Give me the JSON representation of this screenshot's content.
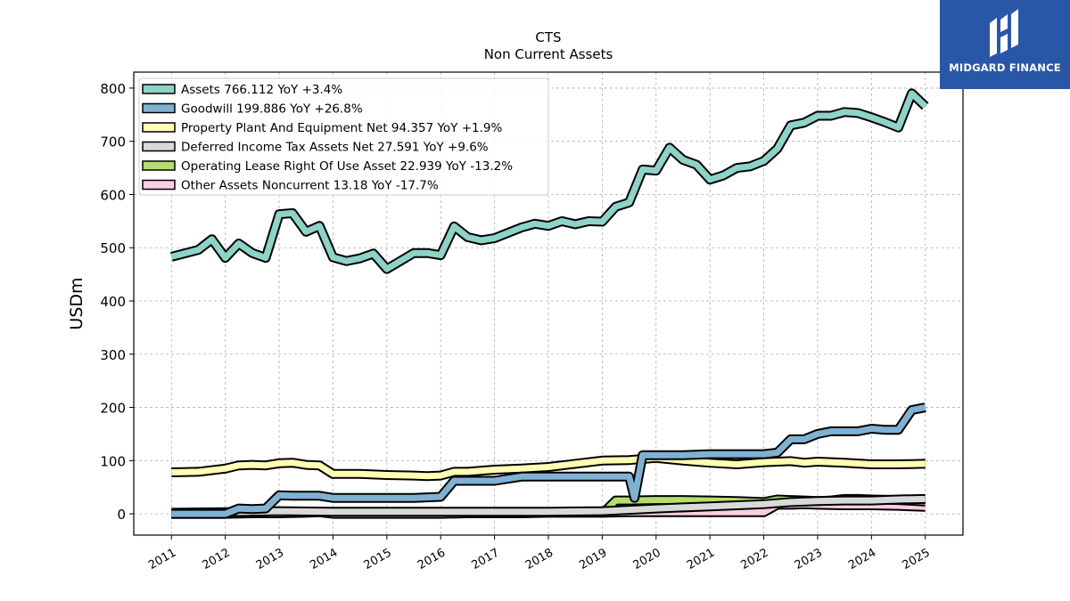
{
  "brand": {
    "name": "MIDGARD FINANCE",
    "color": "#2a56a8"
  },
  "chart_data": {
    "type": "line",
    "title": "CTS",
    "subtitle": "Non Current  Assets",
    "ylabel": "USDm",
    "xlabel": "",
    "ylim": [
      -40,
      830
    ],
    "xlim": [
      2010.3,
      2025.7
    ],
    "yticks": [
      0,
      100,
      200,
      300,
      400,
      500,
      600,
      700,
      800
    ],
    "xticks": [
      "2011",
      "2012",
      "2013",
      "2014",
      "2015",
      "2016",
      "2017",
      "2018",
      "2019",
      "2020",
      "2021",
      "2022",
      "2023",
      "2024",
      "2025"
    ],
    "grid": true,
    "legend_position": "top-left",
    "series": [
      {
        "name": "Assets",
        "legend": "Assets  766.112 YoY +3.4%",
        "color": "#8dd3c7",
        "x": [
          2011.0,
          2011.5,
          2011.75,
          2012.0,
          2012.25,
          2012.5,
          2012.75,
          2013.0,
          2013.25,
          2013.5,
          2013.75,
          2014.0,
          2014.25,
          2014.5,
          2014.75,
          2015.0,
          2015.25,
          2015.5,
          2015.75,
          2016.0,
          2016.25,
          2016.5,
          2016.75,
          2017.0,
          2017.25,
          2017.5,
          2017.75,
          2018.0,
          2018.25,
          2018.5,
          2018.75,
          2019.0,
          2019.25,
          2019.5,
          2019.75,
          2020.0,
          2020.25,
          2020.5,
          2020.75,
          2021.0,
          2021.25,
          2021.5,
          2021.75,
          2022.0,
          2022.25,
          2022.5,
          2022.75,
          2023.0,
          2023.25,
          2023.5,
          2023.75,
          2024.0,
          2024.25,
          2024.5,
          2024.75,
          2025.0
        ],
        "values": [
          483,
          496,
          516,
          481,
          508,
          490,
          481,
          563,
          565,
          530,
          541,
          482,
          475,
          480,
          489,
          460,
          475,
          490,
          490,
          486,
          540,
          520,
          514,
          518,
          528,
          538,
          545,
          541,
          550,
          544,
          550,
          549,
          577,
          585,
          647,
          645,
          688,
          665,
          656,
          628,
          636,
          650,
          653,
          663,
          686,
          730,
          735,
          748,
          748,
          755,
          753,
          745,
          736,
          726,
          790,
          766
        ]
      },
      {
        "name": "Goodwill",
        "legend": "Goodwill  199.886 YoY +26.8%",
        "color": "#80b1d3",
        "x": [
          2011.0,
          2011.75,
          2012.0,
          2012.25,
          2012.5,
          2012.75,
          2013.0,
          2013.25,
          2013.75,
          2014.0,
          2014.5,
          2015.0,
          2015.5,
          2016.0,
          2016.25,
          2016.5,
          2017.0,
          2017.5,
          2018.0,
          2018.5,
          2019.0,
          2019.25,
          2019.5,
          2019.6,
          2019.75,
          2020.0,
          2020.5,
          2021.0,
          2021.5,
          2022.0,
          2022.25,
          2022.5,
          2022.75,
          2023.0,
          2023.25,
          2023.5,
          2023.75,
          2024.0,
          2024.25,
          2024.5,
          2024.75,
          2025.0
        ],
        "values": [
          0,
          0,
          0,
          10,
          9,
          10,
          35,
          34,
          34,
          30,
          30,
          30,
          30,
          32,
          62,
          62,
          62,
          70,
          70,
          70,
          70,
          70,
          70,
          30,
          110,
          110,
          110,
          112,
          112,
          112,
          115,
          140,
          140,
          150,
          155,
          155,
          155,
          160,
          158,
          158,
          195,
          200
        ]
      },
      {
        "name": "Property Plant And Equipment Net",
        "legend": "Property Plant And Equipment Net  94.357 YoY +1.9%",
        "color": "#ffffb3",
        "x": [
          2011.0,
          2011.5,
          2012.0,
          2012.25,
          2012.5,
          2012.75,
          2013.0,
          2013.25,
          2013.5,
          2013.75,
          2014.0,
          2014.5,
          2015.0,
          2015.5,
          2015.75,
          2016.0,
          2016.25,
          2016.5,
          2017.0,
          2017.5,
          2018.0,
          2018.5,
          2019.0,
          2019.5,
          2020.0,
          2020.5,
          2021.0,
          2021.5,
          2022.0,
          2022.5,
          2022.75,
          2023.0,
          2023.5,
          2024.0,
          2024.5,
          2025.0
        ],
        "values": [
          78,
          79,
          85,
          91,
          92,
          91,
          95,
          96,
          92,
          91,
          75,
          75,
          73,
          72,
          71,
          72,
          79,
          79,
          83,
          85,
          88,
          94,
          100,
          101,
          105,
          100,
          96,
          93,
          97,
          99,
          96,
          98,
          96,
          93,
          93,
          94
        ]
      },
      {
        "name": "Deferred Income Tax Assets Net",
        "legend": "Deferred Income Tax Assets Net  27.591 YoY +9.6%",
        "color": "#d9d9d9",
        "x": [
          2011.0,
          2012.0,
          2013.0,
          2014.0,
          2015.0,
          2016.0,
          2017.0,
          2018.0,
          2019.0,
          2020.0,
          2021.0,
          2022.0,
          2022.5,
          2023.0,
          2023.5,
          2024.0,
          2024.5,
          2025.0
        ],
        "values": [
          2,
          3,
          5,
          4,
          4,
          4,
          4,
          4,
          5,
          10,
          14,
          18,
          22,
          24,
          25,
          25,
          27,
          28
        ]
      },
      {
        "name": "Operating Lease Right Of Use Asset",
        "legend": "Operating Lease Right Of Use Asset  22.939 YoY -13.2%",
        "color": "#b3de69",
        "x": [
          2019.0,
          2019.25,
          2019.5,
          2020.0,
          2020.25,
          2020.5,
          2021.0,
          2021.5,
          2022.0,
          2022.25,
          2022.5,
          2023.0,
          2023.25,
          2023.5,
          2023.75,
          2024.0,
          2024.5,
          2025.0
        ],
        "values": [
          0,
          25,
          25,
          26,
          26,
          26,
          25,
          24,
          22,
          27,
          26,
          24,
          25,
          28,
          28,
          27,
          26,
          23
        ]
      },
      {
        "name": "Other Assets Noncurrent",
        "legend": "Other Assets Noncurrent  13.18 YoY -17.7%",
        "color": "#fccde5",
        "x": [
          2011.0,
          2011.5,
          2012.0,
          2012.5,
          2013.0,
          2013.5,
          2013.75,
          2014.0,
          2014.5,
          2015.0,
          2015.5,
          2016.0,
          2016.5,
          2017.0,
          2017.5,
          2018.0,
          2018.5,
          2019.0,
          2019.5,
          2020.0,
          2020.5,
          2021.0,
          2021.5,
          2022.0,
          2022.25,
          2022.5,
          2022.75,
          2023.0,
          2023.5,
          2024.0,
          2024.5,
          2025.0
        ],
        "values": [
          0,
          0,
          0,
          1,
          1,
          2,
          3,
          0,
          0,
          0,
          0,
          0,
          1,
          1,
          1,
          2,
          2,
          2,
          3,
          3,
          3,
          3,
          3,
          3,
          17,
          17,
          18,
          17,
          16,
          16,
          15,
          13
        ]
      }
    ]
  }
}
